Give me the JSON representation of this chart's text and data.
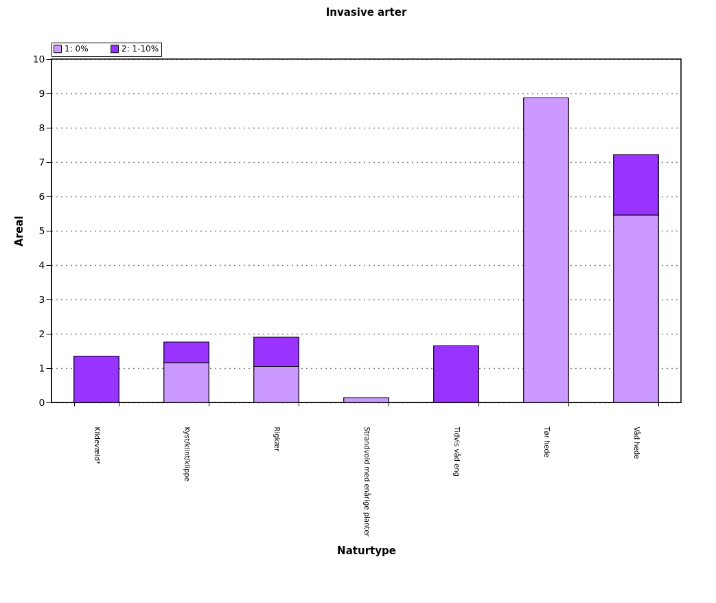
{
  "chart_data": {
    "type": "bar",
    "title": "Invasive arter",
    "xlabel": "Naturtype",
    "ylabel": "Areal",
    "categories": [
      "Kildevæld*",
      "Kyst/klint/klippe",
      "Rigkær",
      "Strandvold med enårige planter",
      "Tidvis våd eng",
      "Tør hede",
      "Våd hede"
    ],
    "series": [
      {
        "name": "1: 0%",
        "color": "#cc99ff",
        "values": [
          null,
          1.16,
          1.05,
          0.14,
          null,
          8.87,
          5.46
        ]
      },
      {
        "name": "2: 1-10%",
        "color": "#9933ff",
        "values": [
          1.35,
          0.6,
          0.85,
          null,
          1.65,
          null,
          1.76
        ]
      }
    ],
    "stacked": true,
    "ylim": [
      0,
      10
    ],
    "yticks": [
      0,
      1,
      2,
      3,
      4,
      5,
      6,
      7,
      8,
      9,
      10
    ],
    "grid": "y",
    "legend": "top left"
  }
}
